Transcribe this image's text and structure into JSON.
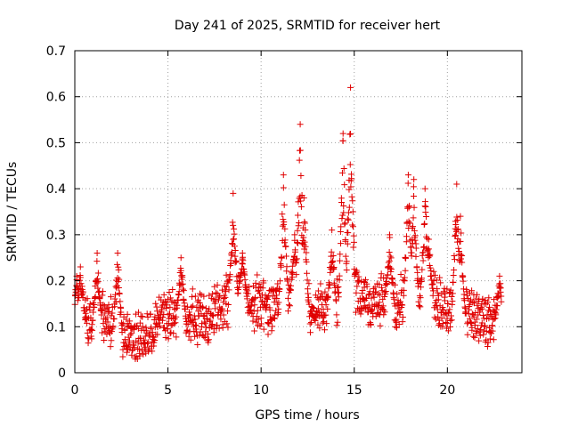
{
  "chart_data": {
    "type": "scatter",
    "title": "Day 241 of 2025, SRMTID for receiver hert",
    "xlabel": "GPS time / hours",
    "ylabel": "SRMTID / TECUs",
    "xlim": [
      0,
      24
    ],
    "ylim": [
      0,
      0.7
    ],
    "x_ticks": [
      0,
      5,
      10,
      15,
      20
    ],
    "x_tick_labels": [
      "0",
      "5",
      "10",
      "15",
      "20"
    ],
    "y_ticks": [
      0,
      0.1,
      0.2,
      0.3,
      0.4,
      0.5,
      0.6,
      0.7
    ],
    "y_tick_labels": [
      "0",
      "0.1",
      "0.2",
      "0.3",
      "0.4",
      "0.5",
      "0.6",
      "0.7"
    ],
    "grid": true,
    "marker": "+",
    "color": "#e00000",
    "series": [
      {
        "name": "hert",
        "x_start": 0.0,
        "x_end": 22.9,
        "baseline": [
          [
            0.0,
            0.11
          ],
          [
            0.5,
            0.12
          ],
          [
            1.0,
            0.11
          ],
          [
            1.5,
            0.12
          ],
          [
            2.0,
            0.1
          ],
          [
            2.5,
            0.08
          ],
          [
            3.0,
            0.08
          ],
          [
            3.5,
            0.08
          ],
          [
            4.0,
            0.09
          ],
          [
            4.5,
            0.11
          ],
          [
            5.0,
            0.12
          ],
          [
            5.5,
            0.13
          ],
          [
            6.0,
            0.12
          ],
          [
            6.5,
            0.12
          ],
          [
            7.0,
            0.12
          ],
          [
            7.5,
            0.13
          ],
          [
            8.0,
            0.15
          ],
          [
            8.5,
            0.17
          ],
          [
            9.0,
            0.17
          ],
          [
            9.5,
            0.15
          ],
          [
            10.0,
            0.15
          ],
          [
            10.5,
            0.14
          ],
          [
            11.0,
            0.15
          ],
          [
            11.5,
            0.17
          ],
          [
            12.0,
            0.16
          ],
          [
            12.5,
            0.14
          ],
          [
            13.0,
            0.15
          ],
          [
            13.5,
            0.13
          ],
          [
            14.0,
            0.14
          ],
          [
            14.5,
            0.17
          ],
          [
            15.0,
            0.17
          ],
          [
            15.5,
            0.16
          ],
          [
            16.0,
            0.15
          ],
          [
            16.5,
            0.16
          ],
          [
            17.0,
            0.15
          ],
          [
            17.5,
            0.16
          ],
          [
            18.0,
            0.18
          ],
          [
            18.5,
            0.16
          ],
          [
            19.0,
            0.17
          ],
          [
            19.5,
            0.15
          ],
          [
            20.0,
            0.14
          ],
          [
            20.5,
            0.15
          ],
          [
            21.0,
            0.13
          ],
          [
            21.5,
            0.12
          ],
          [
            22.0,
            0.11
          ],
          [
            22.5,
            0.11
          ],
          [
            22.9,
            0.12
          ]
        ],
        "peaks": [
          {
            "x": 0.1,
            "y": 0.21
          },
          {
            "x": 0.3,
            "y": 0.23
          },
          {
            "x": 1.2,
            "y": 0.26
          },
          {
            "x": 2.3,
            "y": 0.26
          },
          {
            "x": 5.7,
            "y": 0.25
          },
          {
            "x": 8.5,
            "y": 0.39
          },
          {
            "x": 9.0,
            "y": 0.26
          },
          {
            "x": 11.2,
            "y": 0.43
          },
          {
            "x": 11.8,
            "y": 0.3
          },
          {
            "x": 12.1,
            "y": 0.54
          },
          {
            "x": 12.3,
            "y": 0.38
          },
          {
            "x": 13.8,
            "y": 0.31
          },
          {
            "x": 14.4,
            "y": 0.52
          },
          {
            "x": 14.8,
            "y": 0.62
          },
          {
            "x": 16.9,
            "y": 0.3
          },
          {
            "x": 17.9,
            "y": 0.43
          },
          {
            "x": 18.2,
            "y": 0.42
          },
          {
            "x": 18.8,
            "y": 0.4
          },
          {
            "x": 19.0,
            "y": 0.29
          },
          {
            "x": 20.5,
            "y": 0.41
          },
          {
            "x": 20.7,
            "y": 0.34
          },
          {
            "x": 22.8,
            "y": 0.21
          }
        ],
        "min_value": 0.03,
        "max_value": 0.62
      }
    ]
  }
}
